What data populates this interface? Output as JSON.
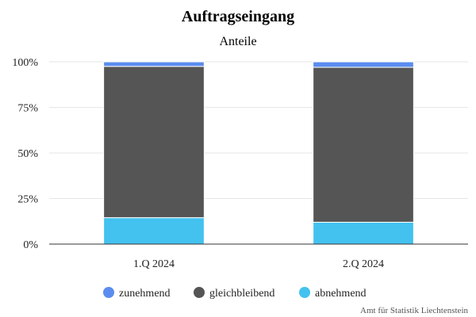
{
  "chart_data": {
    "type": "bar",
    "stacked": true,
    "stack_mode": "percent",
    "title": "Auftragseingang",
    "subtitle": "Anteile",
    "xlabel": "",
    "ylabel": "",
    "categories": [
      "1.Q 2024",
      "2.Q 2024"
    ],
    "ylim": [
      0,
      100
    ],
    "y_ticks": [
      "0%",
      "25%",
      "50%",
      "75%",
      "100%"
    ],
    "grid": true,
    "legend_position": "bottom",
    "series": [
      {
        "name": "zunehmend",
        "color": "#5b8def",
        "values": [
          2.5,
          3.0
        ]
      },
      {
        "name": "gleichbleibend",
        "color": "#555555",
        "values": [
          83.0,
          85.0
        ]
      },
      {
        "name": "abnehmend",
        "color": "#43c2ef",
        "values": [
          14.5,
          12.0
        ]
      }
    ],
    "credit": "Amt für Statistik Liechtenstein"
  }
}
